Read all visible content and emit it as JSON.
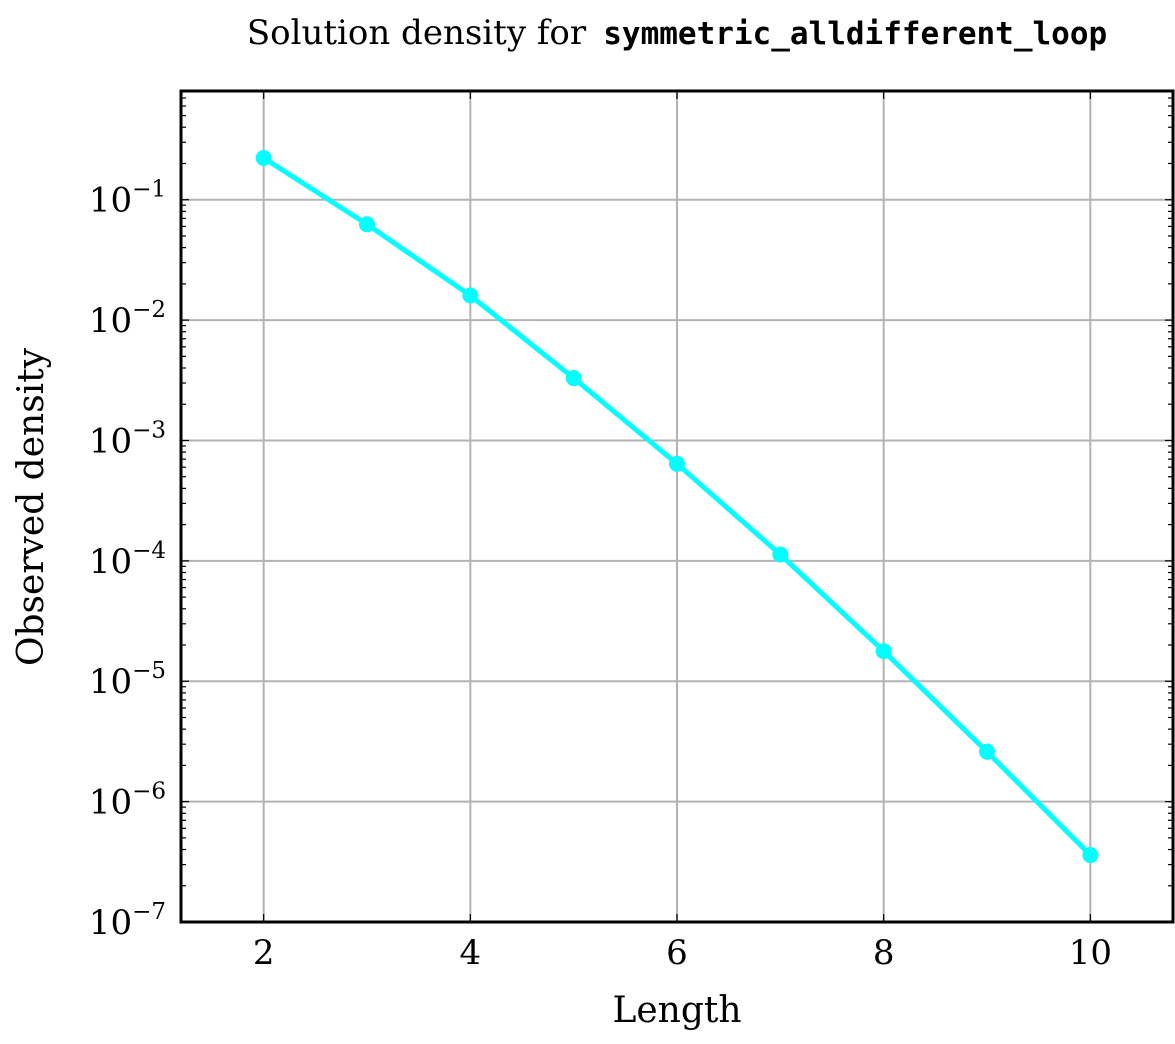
{
  "chart_data": {
    "type": "line",
    "title_prefix": "Solution density for",
    "title_code": "symmetric_alldifferent_loop",
    "xlabel": "Length",
    "ylabel": "Observed density",
    "y_scale": "log",
    "xlim": [
      1.2,
      10.8
    ],
    "ylim": [
      1e-07,
      0.8
    ],
    "x_ticks": [
      2,
      4,
      6,
      8,
      10
    ],
    "y_ticks": [
      {
        "base": "10",
        "exp": "−7",
        "value": 1e-07
      },
      {
        "base": "10",
        "exp": "−6",
        "value": 1e-06
      },
      {
        "base": "10",
        "exp": "−5",
        "value": 1e-05
      },
      {
        "base": "10",
        "exp": "−4",
        "value": 0.0001
      },
      {
        "base": "10",
        "exp": "−3",
        "value": 0.001
      },
      {
        "base": "10",
        "exp": "−2",
        "value": 0.01
      },
      {
        "base": "10",
        "exp": "−1",
        "value": 0.1
      }
    ],
    "grid": true,
    "series": [
      {
        "color": "#00ffff",
        "marker": "circle",
        "x": [
          2,
          3,
          4,
          5,
          6,
          7,
          8,
          9,
          10
        ],
        "y": [
          0.222,
          0.0625,
          0.016,
          0.0033,
          0.00064,
          0.000113,
          1.78e-05,
          2.6e-06,
          3.6e-07
        ]
      }
    ]
  }
}
